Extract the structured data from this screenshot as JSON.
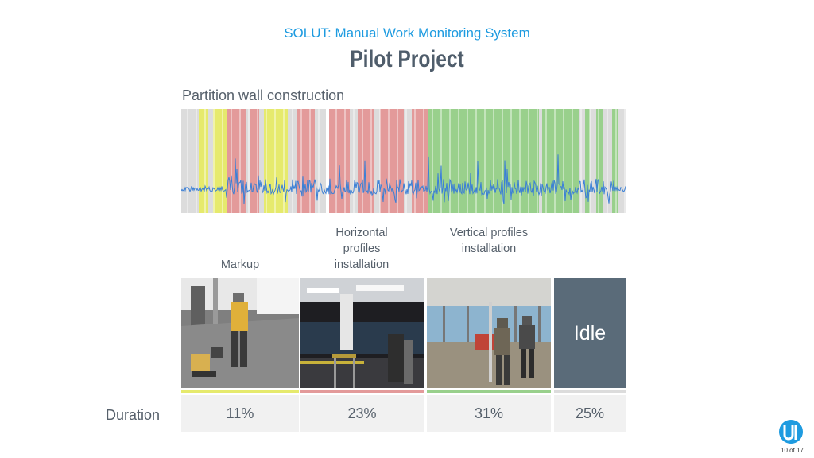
{
  "header": {
    "subtitle": "SOLUT: Manual Work Monitoring System",
    "title": "Pilot Project"
  },
  "section_title": "Partition wall construction",
  "colors": {
    "markup": "#e6ea6d",
    "horizontal": "#e39a9a",
    "vertical": "#99d08c",
    "idle": "#dcdcdc",
    "signal": "#3a7fd6",
    "idle_box": "#5a6b79"
  },
  "stages": [
    {
      "label": "Markup",
      "photo": "markup-photo",
      "color": "#e6ea6d"
    },
    {
      "label": "Horizontal profiles installation",
      "photo": "horizontal-photo",
      "color": "#e39a9a"
    },
    {
      "label": "Vertical profiles installation",
      "photo": "vertical-photo",
      "color": "#99d08c"
    },
    {
      "label": "",
      "photo": "idle-box",
      "color": "#dcdcdc"
    }
  ],
  "idle_label": "Idle",
  "duration": {
    "label": "Duration",
    "values": [
      "11%",
      "23%",
      "31%",
      "25%"
    ]
  },
  "footer": {
    "page": "10 of 17",
    "logo_icon": "solut-logo-icon"
  }
}
